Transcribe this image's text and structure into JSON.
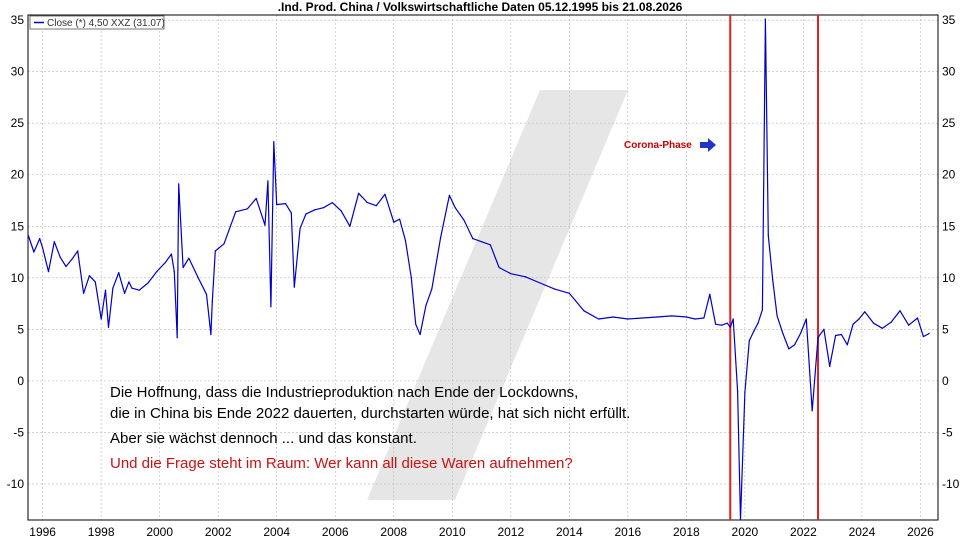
{
  "chart_data": {
    "type": "line",
    "title": ".Ind. Prod. China / Volkswirtschaftliche Daten 05.12.1995 bis 21.08.2026",
    "legend": "Close (*) 4,50 XXZ (31.07)",
    "xlabel": "",
    "ylabel": "",
    "xlim": [
      1995.5,
      2026.6
    ],
    "ylim": [
      -13.5,
      35.5
    ],
    "grid": true,
    "x_ticks": [
      "1996",
      "1998",
      "2000",
      "2002",
      "2004",
      "2006",
      "2008",
      "2010",
      "2012",
      "2014",
      "2016",
      "2018",
      "2020",
      "2022",
      "2024",
      "2026"
    ],
    "y_ticks": [
      "35",
      "30",
      "25",
      "20",
      "15",
      "10",
      "5",
      "0",
      "-5",
      "-10"
    ],
    "series": [
      {
        "name": "Close (*) 4,50 XXZ (31.07)",
        "color": "#0000cc",
        "x": [
          1995.5,
          1995.7,
          1995.9,
          1996.0,
          1996.2,
          1996.4,
          1996.6,
          1996.8,
          1997.0,
          1997.2,
          1997.4,
          1997.6,
          1997.8,
          1998.0,
          1998.15,
          1998.25,
          1998.4,
          1998.6,
          1998.8,
          1998.95,
          1999.05,
          1999.3,
          1999.6,
          1999.9,
          2000.2,
          2000.4,
          2000.5,
          2000.6,
          2000.65,
          2000.8,
          2001.0,
          2001.3,
          2001.6,
          2001.75,
          2001.8,
          2001.9,
          2002.2,
          2002.6,
          2003.0,
          2003.3,
          2003.6,
          2003.7,
          2003.8,
          2003.9,
          2004.0,
          2004.3,
          2004.5,
          2004.6,
          2004.8,
          2005.0,
          2005.3,
          2005.6,
          2005.9,
          2006.2,
          2006.5,
          2006.8,
          2007.1,
          2007.4,
          2007.7,
          2008.0,
          2008.2,
          2008.4,
          2008.6,
          2008.75,
          2008.9,
          2009.1,
          2009.3,
          2009.6,
          2009.9,
          2010.1,
          2010.4,
          2010.7,
          2011.0,
          2011.3,
          2011.6,
          2012.0,
          2012.5,
          2013.0,
          2013.5,
          2014.0,
          2014.5,
          2015.0,
          2015.5,
          2016.0,
          2016.5,
          2017.0,
          2017.5,
          2018.0,
          2018.3,
          2018.6,
          2018.8,
          2019.0,
          2019.2,
          2019.4,
          2019.5,
          2019.6,
          2019.75,
          2019.85,
          2020.0,
          2020.15,
          2020.3,
          2020.45,
          2020.6,
          2020.7,
          2020.8,
          2020.95,
          2021.1,
          2021.3,
          2021.5,
          2021.7,
          2021.9,
          2022.1,
          2022.3,
          2022.5,
          2022.7,
          2022.9,
          2023.1,
          2023.3,
          2023.5,
          2023.7,
          2023.9,
          2024.1,
          2024.4,
          2024.7,
          2025.0,
          2025.3,
          2025.6,
          2025.9,
          2026.1,
          2026.3
        ],
        "values": [
          14.2,
          12.5,
          13.8,
          12.9,
          10.6,
          13.5,
          12.0,
          11.1,
          11.8,
          12.6,
          8.5,
          10.2,
          9.6,
          6.0,
          8.8,
          5.2,
          9.0,
          10.5,
          8.5,
          9.6,
          9.0,
          8.8,
          9.5,
          10.6,
          11.5,
          12.3,
          10.6,
          4.2,
          19.1,
          11.0,
          11.9,
          10.1,
          8.4,
          4.5,
          7.7,
          12.6,
          13.3,
          16.4,
          16.7,
          17.7,
          15.1,
          19.4,
          7.2,
          23.2,
          17.1,
          17.2,
          16.3,
          9.1,
          14.8,
          16.2,
          16.6,
          16.8,
          17.3,
          16.5,
          15.0,
          18.2,
          17.3,
          17.0,
          18.1,
          15.4,
          15.7,
          13.6,
          10.0,
          5.5,
          4.5,
          7.3,
          8.9,
          13.9,
          18.0,
          16.8,
          15.6,
          13.8,
          13.5,
          13.2,
          11.0,
          10.4,
          10.1,
          9.5,
          8.9,
          8.5,
          6.8,
          6.0,
          6.2,
          6.0,
          6.1,
          6.2,
          6.3,
          6.2,
          6.0,
          6.1,
          8.4,
          5.5,
          5.4,
          5.6,
          5.2,
          6.0,
          -1.0,
          -13.5,
          -1.1,
          3.9,
          4.8,
          5.6,
          6.9,
          35.1,
          14.1,
          9.8,
          6.3,
          4.6,
          3.1,
          3.5,
          4.6,
          6.0,
          -2.9,
          4.2,
          5.0,
          1.4,
          4.4,
          4.5,
          3.5,
          5.5,
          6.0,
          6.7,
          5.6,
          5.1,
          5.7,
          6.8,
          5.4,
          6.1,
          4.3,
          4.6
        ]
      }
    ],
    "annotations": [
      {
        "text": "Corona-Phase",
        "color": "#cc0000",
        "arrow_color": "#2233cc"
      },
      {
        "type": "vline",
        "x": 2019.5,
        "color": "#dd2222"
      },
      {
        "type": "vline",
        "x": 2022.5,
        "color": "#dd2222"
      }
    ]
  },
  "text_lines": [
    {
      "text": "Die Hoffnung, dass die Industrieproduktion nach Ende der Lockdowns,",
      "color": "#000000"
    },
    {
      "text": "die in China bis Ende 2022 dauerten, durchstarten würde, hat sich nicht erfüllt.",
      "color": "#000000"
    },
    {
      "text": "Aber sie wächst dennoch ... und das konstant.",
      "color": "#000000"
    },
    {
      "text": "Und die Frage steht im Raum: Wer kann all diese Waren aufnehmen?",
      "color": "#cc1111"
    }
  ]
}
